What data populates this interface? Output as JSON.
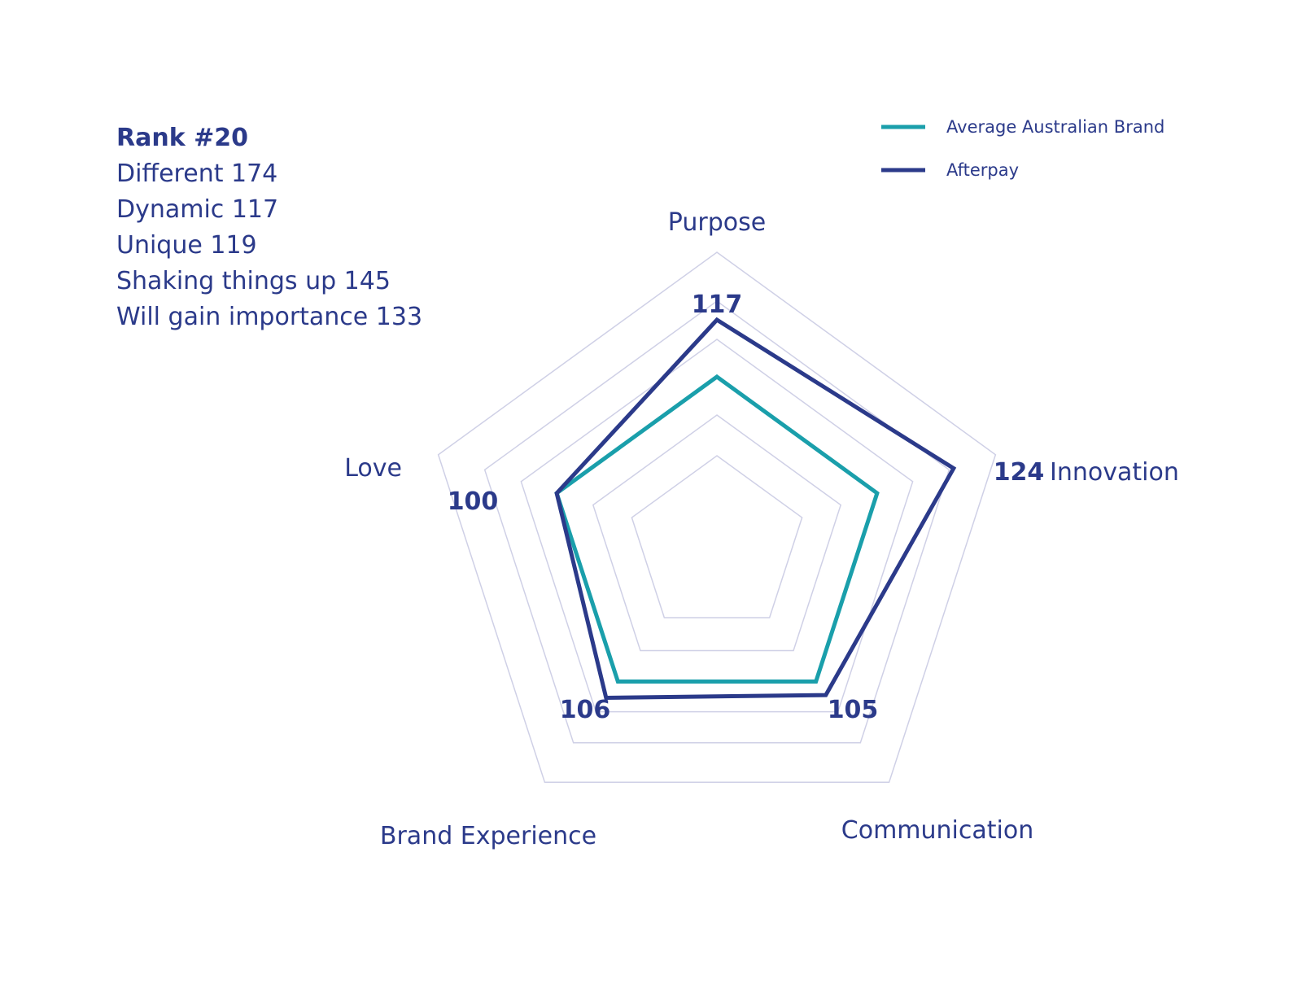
{
  "stats": {
    "rank": "Rank #20",
    "lines": [
      "Different 174",
      "Dynamic 117",
      "Unique 119",
      "Shaking things up 145",
      "Will gain importance 133"
    ]
  },
  "chart_data": {
    "type": "radar",
    "axes": [
      "Purpose",
      "Innovation",
      "Communication",
      "Brand Experience",
      "Love"
    ],
    "rings": 6,
    "series": [
      {
        "name": "Average Australian Brand",
        "color": "#1a9fab",
        "values": [
          100,
          100,
          100,
          100,
          100
        ]
      },
      {
        "name": "Afterpay",
        "color": "#2b3a8a",
        "values": [
          117,
          124,
          105,
          106,
          100
        ]
      }
    ],
    "value_labels": [
      "117",
      "124",
      "105",
      "106",
      "100"
    ],
    "grid": true,
    "legend_position": "top-right",
    "grid_color": "#cfd0e6"
  }
}
